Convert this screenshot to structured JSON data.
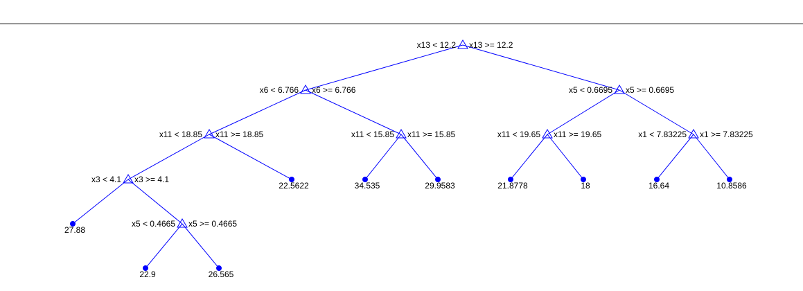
{
  "colors": {
    "edge": "#0000ff",
    "marker": "#0000ff",
    "text": "#000000"
  },
  "tree": {
    "nodes": [
      {
        "id": "n1",
        "type": "split",
        "left_label": "x13 < 12.2",
        "right_label": "x13 >= 12.2"
      },
      {
        "id": "n2",
        "type": "split",
        "left_label": "x6 < 6.766",
        "right_label": "x6 >= 6.766"
      },
      {
        "id": "n3",
        "type": "split",
        "left_label": "x5 < 0.6695",
        "right_label": "x5 >= 0.6695"
      },
      {
        "id": "n4",
        "type": "split",
        "left_label": "x11 < 18.85",
        "right_label": "x11 >= 18.85"
      },
      {
        "id": "n5",
        "type": "split",
        "left_label": "x11 < 15.85",
        "right_label": "x11 >= 15.85"
      },
      {
        "id": "n6",
        "type": "split",
        "left_label": "x11 < 19.65",
        "right_label": "x11 >= 19.65"
      },
      {
        "id": "n7",
        "type": "split",
        "left_label": "x1 < 7.83225",
        "right_label": "x1 >= 7.83225"
      },
      {
        "id": "n8",
        "type": "split",
        "left_label": "x3 < 4.1",
        "right_label": "x3 >= 4.1"
      },
      {
        "id": "n9",
        "type": "leaf",
        "value": "22.5622"
      },
      {
        "id": "n10",
        "type": "leaf",
        "value": "34.535"
      },
      {
        "id": "n11",
        "type": "leaf",
        "value": "29.9583"
      },
      {
        "id": "n12",
        "type": "leaf",
        "value": "21.8778"
      },
      {
        "id": "n13",
        "type": "leaf",
        "value": "18"
      },
      {
        "id": "n14",
        "type": "leaf",
        "value": "16.64"
      },
      {
        "id": "n15",
        "type": "leaf",
        "value": "10.8586"
      },
      {
        "id": "n16",
        "type": "leaf",
        "value": "27.88"
      },
      {
        "id": "n17",
        "type": "split",
        "left_label": "x5 < 0.4665",
        "right_label": "x5 >= 0.4665"
      },
      {
        "id": "n18",
        "type": "leaf",
        "value": "22.9"
      },
      {
        "id": "n19",
        "type": "leaf",
        "value": "26.565"
      }
    ],
    "edges": [
      [
        "n1",
        "n2"
      ],
      [
        "n1",
        "n3"
      ],
      [
        "n2",
        "n4"
      ],
      [
        "n2",
        "n5"
      ],
      [
        "n3",
        "n6"
      ],
      [
        "n3",
        "n7"
      ],
      [
        "n4",
        "n8"
      ],
      [
        "n4",
        "n9"
      ],
      [
        "n5",
        "n10"
      ],
      [
        "n5",
        "n11"
      ],
      [
        "n6",
        "n12"
      ],
      [
        "n6",
        "n13"
      ],
      [
        "n7",
        "n14"
      ],
      [
        "n7",
        "n15"
      ],
      [
        "n8",
        "n16"
      ],
      [
        "n8",
        "n17"
      ],
      [
        "n17",
        "n18"
      ],
      [
        "n17",
        "n19"
      ]
    ]
  }
}
